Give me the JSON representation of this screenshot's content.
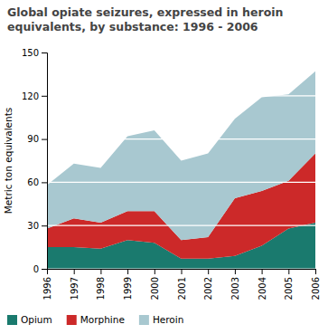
{
  "chart_data": {
    "type": "area",
    "stacked": true,
    "title": "Global opiate seizures, expressed in heroin equivalents, by substance: 1996 - 2006",
    "y_label": "Metric ton equivalents",
    "x": [
      1996,
      1997,
      1998,
      1999,
      2000,
      2001,
      2002,
      2003,
      2004,
      2005,
      2006
    ],
    "series": [
      {
        "name": "Opium",
        "color": "#1a7a6e",
        "values": [
          15,
          15,
          14,
          20,
          18,
          7,
          7,
          9,
          16,
          28,
          32
        ]
      },
      {
        "name": "Morphine",
        "color": "#cc2929",
        "values": [
          13,
          20,
          18,
          20,
          22,
          13,
          15,
          40,
          38,
          33,
          48
        ]
      },
      {
        "name": "Heroin",
        "color": "#a8c8d0",
        "values": [
          30,
          38,
          38,
          52,
          56,
          55,
          58,
          55,
          65,
          60,
          57
        ]
      }
    ],
    "xlim": [
      1996,
      2006
    ],
    "xticks": [
      1996,
      1997,
      1998,
      1999,
      2000,
      2001,
      2002,
      2003,
      2004,
      2005,
      2006
    ],
    "ylim": [
      0,
      150
    ],
    "yticks": [
      0,
      30,
      60,
      90,
      120,
      150
    ],
    "grid": true,
    "legend": "bottom"
  }
}
